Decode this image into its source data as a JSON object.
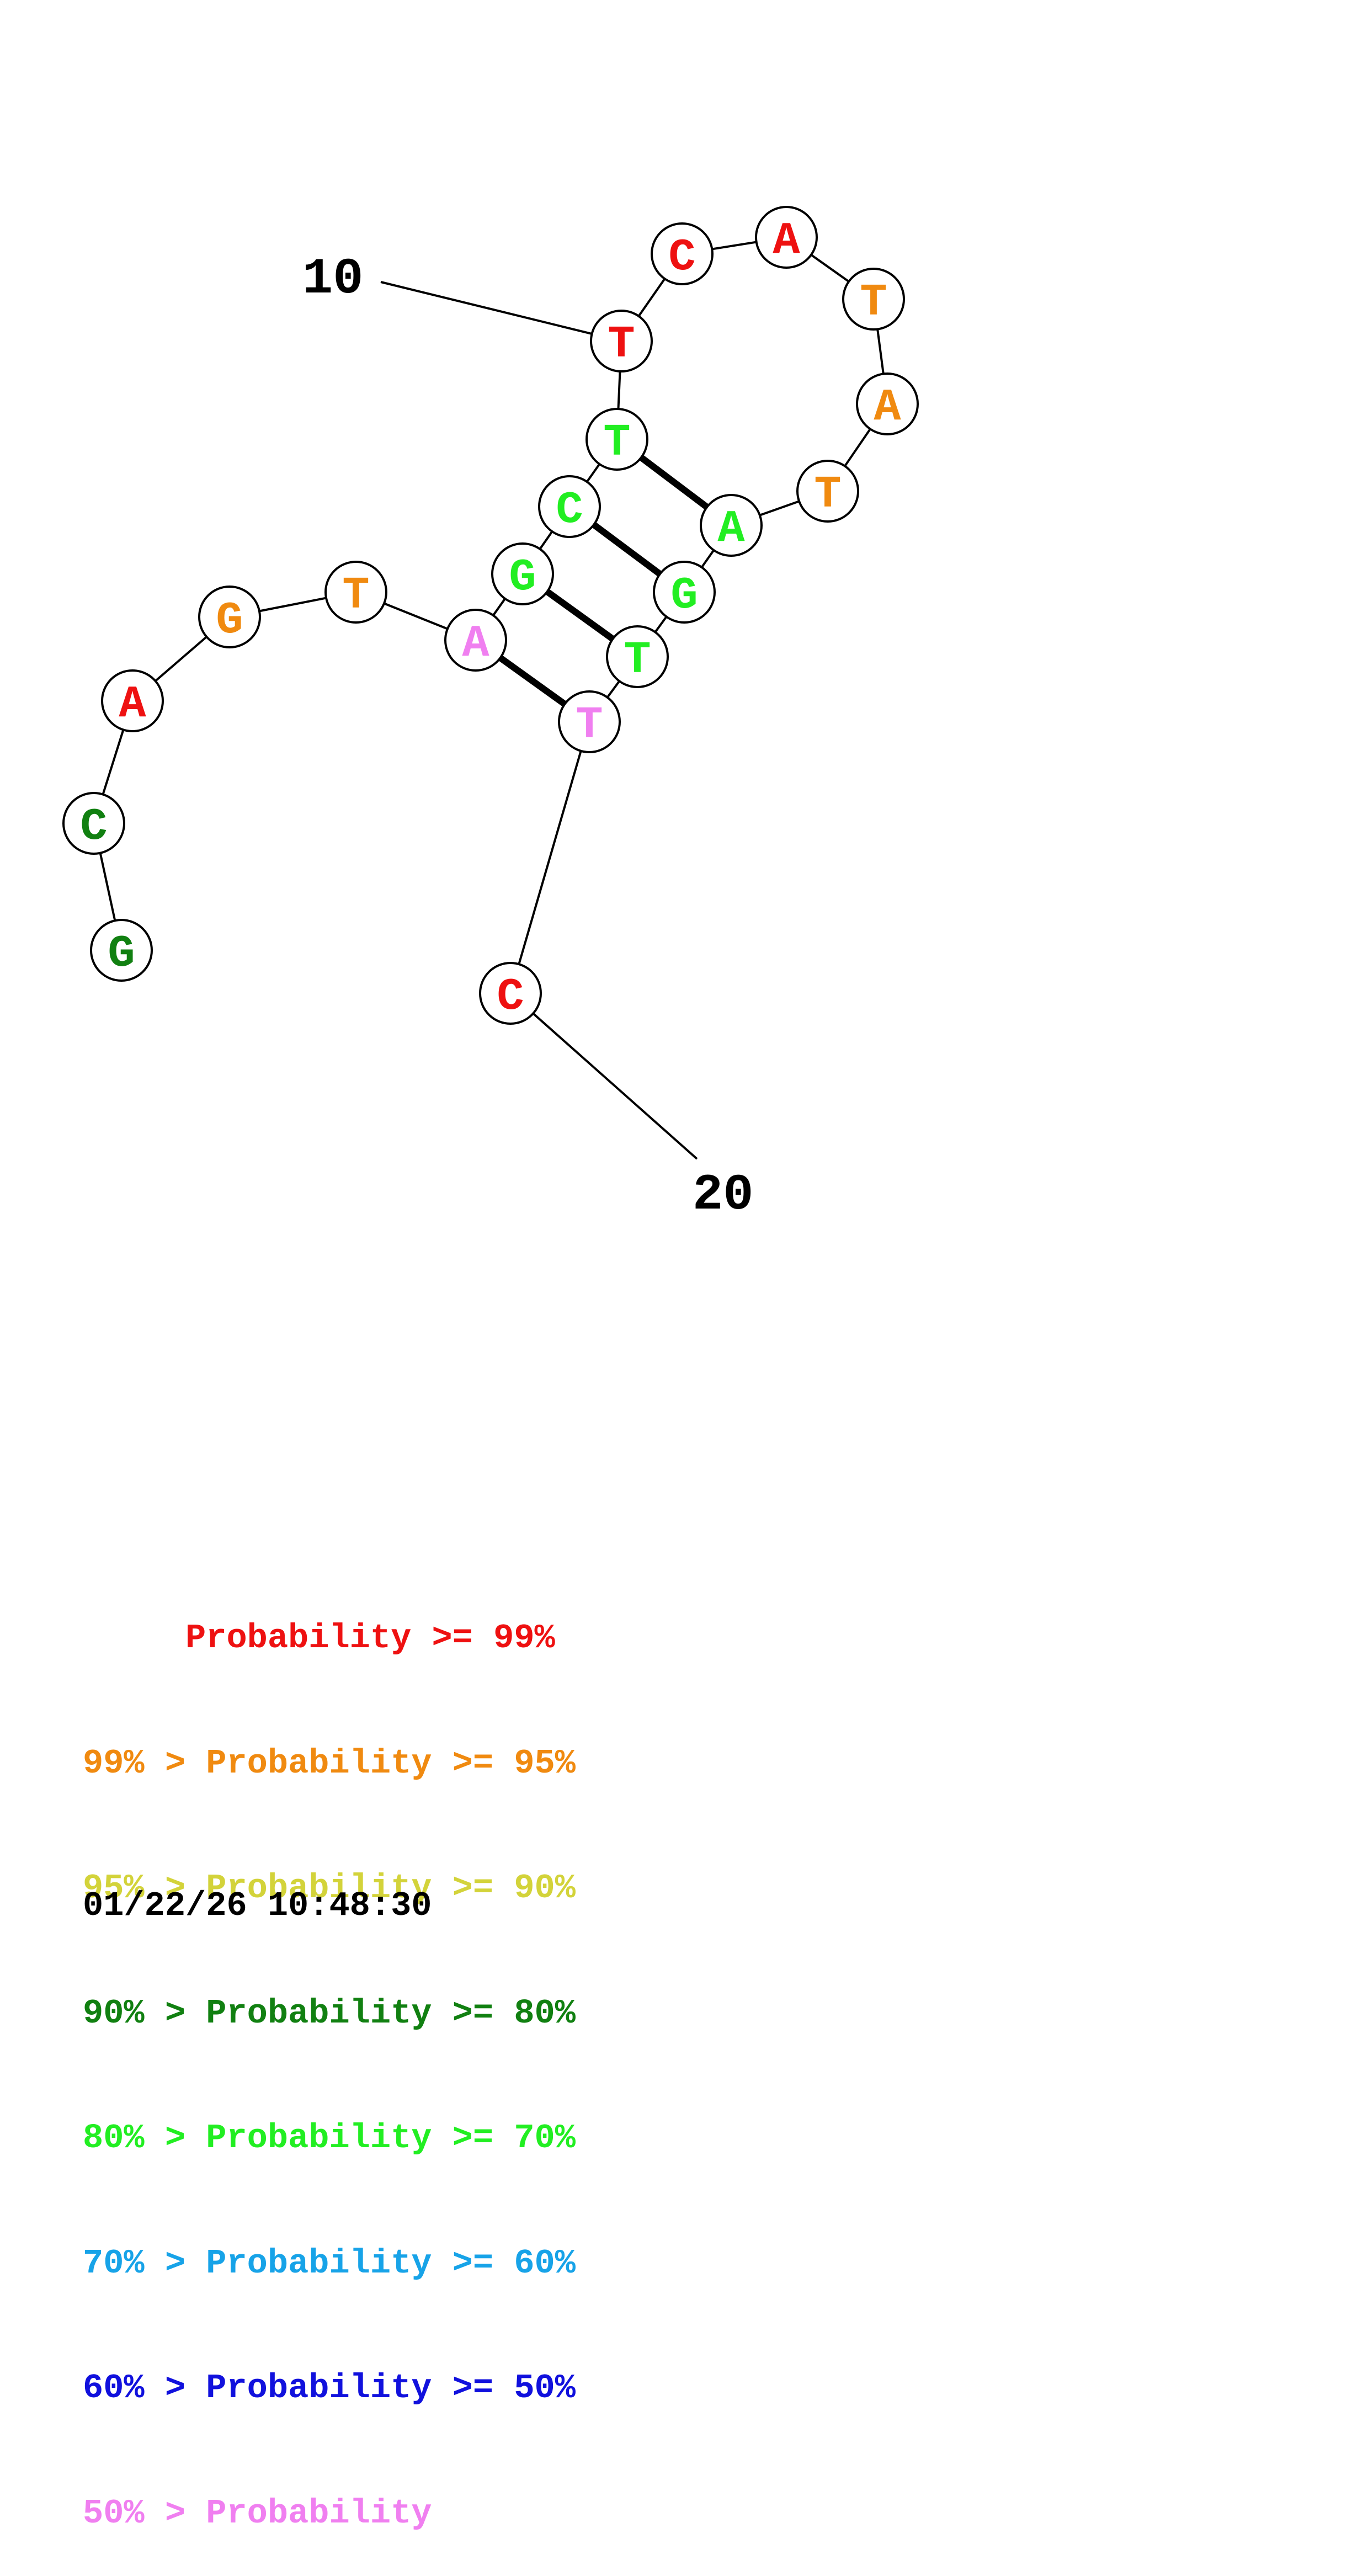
{
  "colors": {
    "red": "#ee1111",
    "orange": "#f08a10",
    "yellow": "#d3d33a",
    "dark_green": "#118011",
    "green": "#22ee22",
    "cyan": "#17a3e8",
    "blue": "#1111dd",
    "pink": "#f07ff0"
  },
  "nucleotides": [
    {
      "index": 1,
      "base": "G",
      "color": "#118011"
    },
    {
      "index": 2,
      "base": "C",
      "color": "#118011"
    },
    {
      "index": 3,
      "base": "A",
      "color": "#ee1111"
    },
    {
      "index": 4,
      "base": "G",
      "color": "#f08a10"
    },
    {
      "index": 5,
      "base": "T",
      "color": "#f08a10"
    },
    {
      "index": 6,
      "base": "A",
      "color": "#f07ff0"
    },
    {
      "index": 7,
      "base": "G",
      "color": "#22ee22"
    },
    {
      "index": 8,
      "base": "C",
      "color": "#22ee22"
    },
    {
      "index": 9,
      "base": "T",
      "color": "#22ee22"
    },
    {
      "index": 10,
      "base": "T",
      "color": "#ee1111"
    },
    {
      "index": 11,
      "base": "C",
      "color": "#ee1111"
    },
    {
      "index": 12,
      "base": "A",
      "color": "#ee1111"
    },
    {
      "index": 13,
      "base": "T",
      "color": "#f08a10"
    },
    {
      "index": 14,
      "base": "A",
      "color": "#f08a10"
    },
    {
      "index": 15,
      "base": "T",
      "color": "#f08a10"
    },
    {
      "index": 16,
      "base": "A",
      "color": "#22ee22"
    },
    {
      "index": 17,
      "base": "G",
      "color": "#22ee22"
    },
    {
      "index": 18,
      "base": "T",
      "color": "#22ee22"
    },
    {
      "index": 19,
      "base": "T",
      "color": "#f07ff0"
    },
    {
      "index": 20,
      "base": "C",
      "color": "#ee1111"
    }
  ],
  "base_pairs": [
    [
      6,
      19
    ],
    [
      7,
      18
    ],
    [
      8,
      17
    ],
    [
      9,
      16
    ]
  ],
  "index_labels": [
    {
      "text": "10",
      "nucleotide": 10
    },
    {
      "text": "20",
      "nucleotide": 20
    }
  ],
  "legend": [
    {
      "text": "     Probability >= 99%",
      "color": "#ee1111"
    },
    {
      "text": "99% > Probability >= 95%",
      "color": "#f08a10"
    },
    {
      "text": "95% > Probability >= 90%",
      "color": "#d3d33a"
    },
    {
      "text": "90% > Probability >= 80%",
      "color": "#118011"
    },
    {
      "text": "80% > Probability >= 70%",
      "color": "#22ee22"
    },
    {
      "text": "70% > Probability >= 60%",
      "color": "#17a3e8"
    },
    {
      "text": "60% > Probability >= 50%",
      "color": "#1111dd"
    },
    {
      "text": "50% > Probability",
      "color": "#f07ff0"
    }
  ],
  "timestamp": "01/22/26 10:48:30"
}
